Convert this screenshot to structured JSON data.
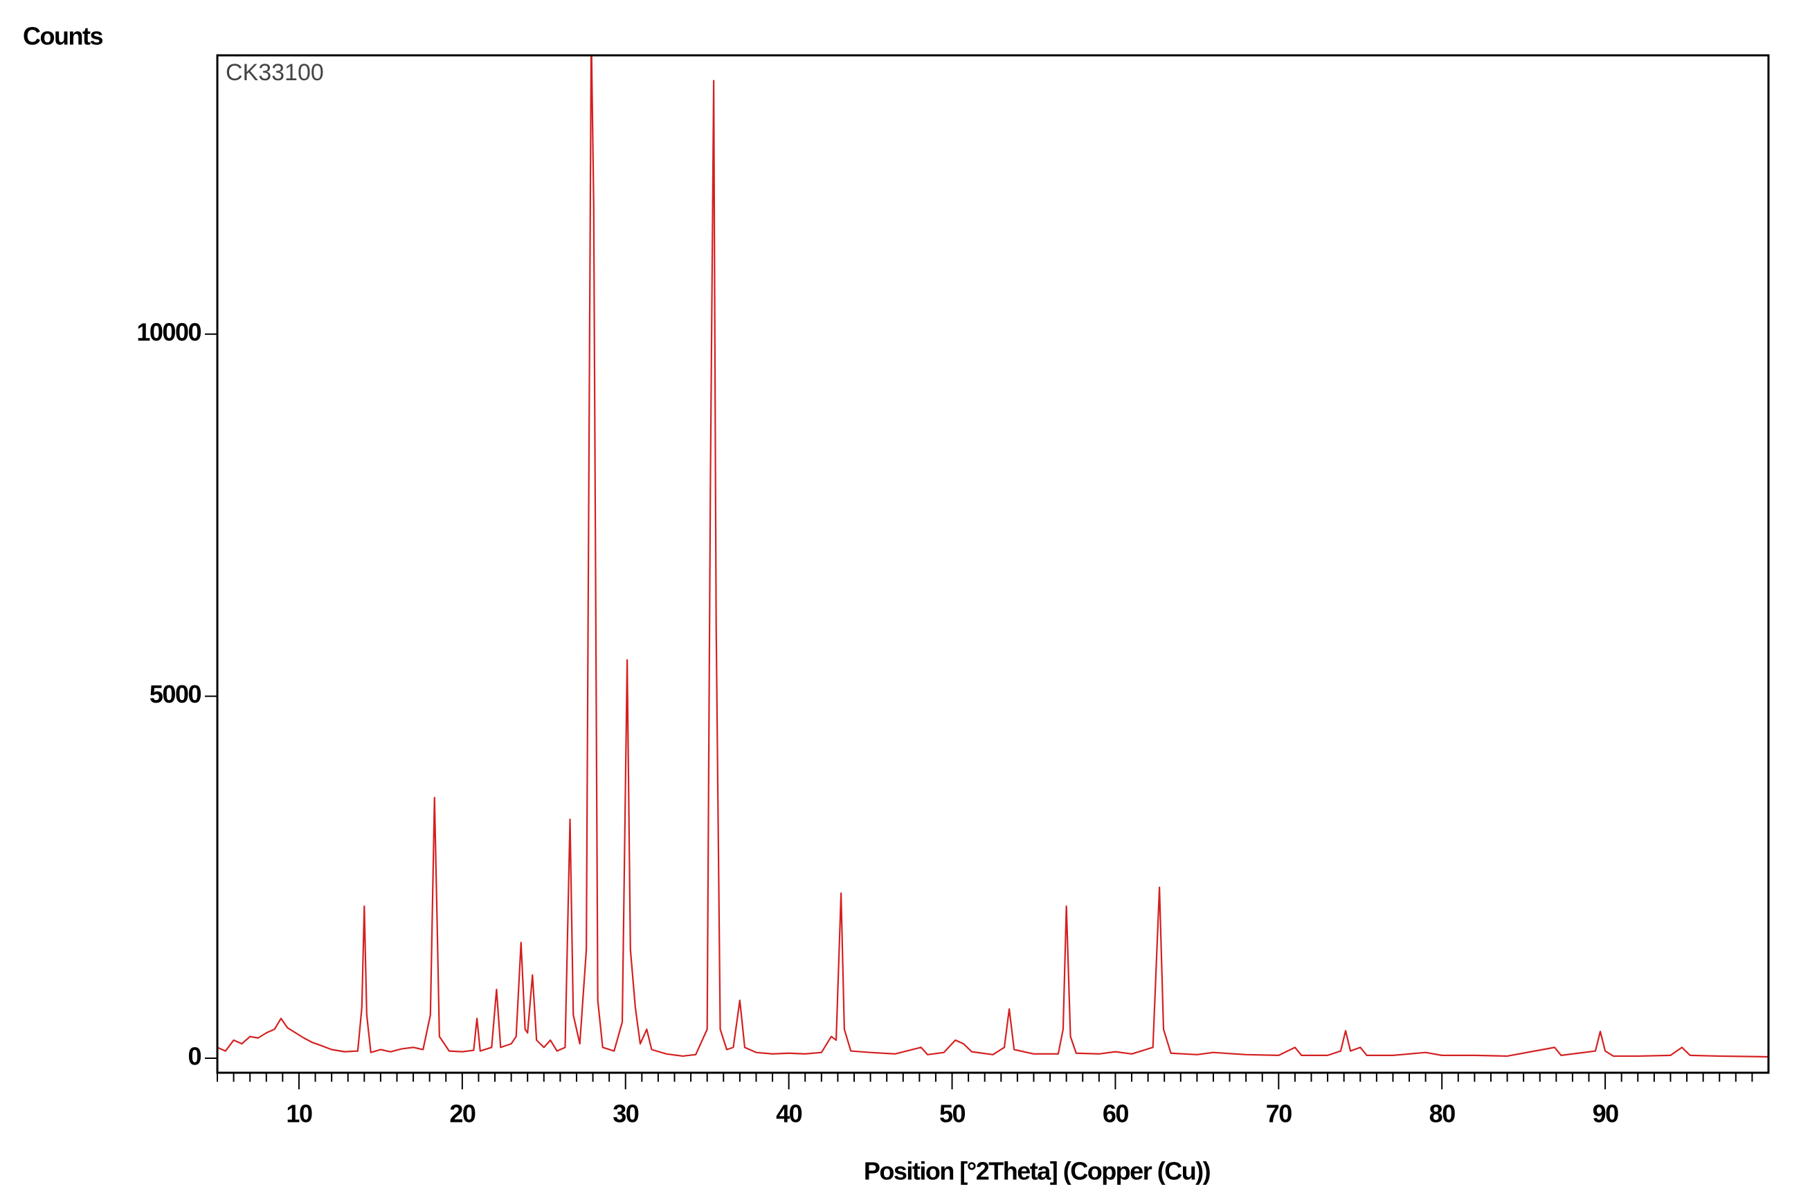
{
  "chart_data": {
    "type": "line",
    "y_axis_label": "Counts",
    "x_axis_label": "Position [°2Theta] (Copper (Cu))",
    "annotation": "CK33100",
    "xlim": [
      5,
      100
    ],
    "ylim": [
      -200,
      13850
    ],
    "xticks": [
      10,
      20,
      30,
      40,
      50,
      60,
      70,
      80,
      90
    ],
    "yticks": [
      0,
      5000,
      10000
    ],
    "x_minor_step": 1,
    "grid": false,
    "series": [
      {
        "color": "#d42020",
        "x": [
          5.0,
          5.5,
          6.0,
          6.5,
          7.0,
          7.5,
          8.0,
          8.5,
          8.9,
          9.3,
          9.8,
          10.3,
          10.8,
          11.3,
          12.0,
          12.8,
          13.6,
          13.85,
          14.0,
          14.15,
          14.4,
          15.0,
          15.6,
          16.3,
          17.0,
          17.6,
          18.05,
          18.3,
          18.45,
          18.6,
          19.2,
          20.0,
          20.7,
          20.9,
          21.1,
          21.8,
          22.1,
          22.35,
          23.0,
          23.3,
          23.6,
          23.85,
          24.0,
          24.3,
          24.55,
          25.0,
          25.4,
          25.8,
          26.3,
          26.6,
          26.8,
          27.2,
          27.6,
          27.9,
          28.05,
          28.3,
          28.6,
          29.3,
          29.8,
          30.1,
          30.3,
          30.6,
          30.9,
          31.3,
          31.6,
          32.5,
          33.5,
          34.3,
          35.0,
          35.2,
          35.4,
          35.55,
          35.8,
          36.2,
          36.6,
          37.0,
          37.3,
          38.0,
          39.0,
          40.0,
          41.0,
          42.0,
          42.6,
          42.9,
          43.2,
          43.4,
          43.8,
          45.0,
          46.5,
          48.1,
          48.5,
          49.5,
          50.2,
          50.7,
          51.2,
          52.5,
          53.2,
          53.5,
          53.8,
          55.0,
          56.5,
          56.8,
          57.0,
          57.25,
          57.6,
          59.0,
          60.0,
          61.0,
          62.3,
          62.7,
          62.95,
          63.4,
          65.0,
          66.0,
          68.0,
          70.0,
          71.0,
          71.4,
          73.0,
          73.8,
          74.1,
          74.4,
          75.0,
          75.4,
          77.0,
          79.0,
          80.0,
          82.0,
          84.0,
          86.9,
          87.3,
          89.4,
          89.7,
          90.0,
          90.5,
          92.0,
          94.0,
          94.7,
          95.2,
          97.0,
          100.0
        ],
        "values": [
          150,
          100,
          250,
          200,
          300,
          280,
          350,
          400,
          550,
          420,
          350,
          280,
          220,
          180,
          120,
          90,
          100,
          700,
          2100,
          600,
          80,
          120,
          90,
          130,
          150,
          120,
          600,
          3600,
          2000,
          300,
          100,
          90,
          110,
          550,
          100,
          150,
          950,
          150,
          200,
          300,
          1600,
          400,
          350,
          1150,
          250,
          150,
          250,
          100,
          150,
          3300,
          600,
          200,
          1500,
          14200,
          11800,
          800,
          150,
          100,
          500,
          5500,
          1500,
          700,
          200,
          400,
          120,
          60,
          30,
          50,
          400,
          8000,
          13500,
          6000,
          400,
          120,
          150,
          800,
          150,
          80,
          60,
          70,
          60,
          80,
          300,
          250,
          2280,
          400,
          100,
          80,
          60,
          150,
          50,
          80,
          250,
          200,
          90,
          50,
          150,
          680,
          120,
          60,
          60,
          400,
          2100,
          300,
          70,
          60,
          90,
          60,
          150,
          2360,
          400,
          70,
          50,
          80,
          50,
          40,
          150,
          40,
          40,
          100,
          380,
          100,
          150,
          40,
          40,
          80,
          40,
          40,
          30,
          150,
          40,
          100,
          370,
          100,
          30,
          30,
          40,
          150,
          40,
          30,
          20
        ]
      }
    ]
  }
}
